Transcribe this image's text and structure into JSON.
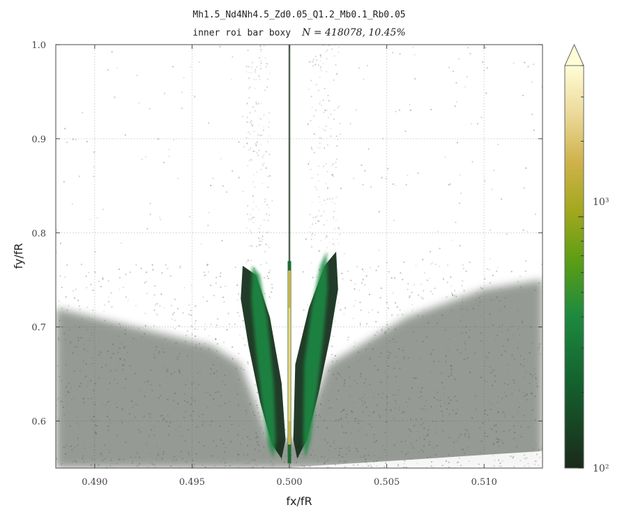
{
  "chart_data": {
    "type": "scatter",
    "title": "Mh1.5_Nd4Nh4.5_Zd0.05_Q1.2_Mb0.1_Rb0.05",
    "subtitle_prefix": "inner roi bar boxy",
    "subtitle_stats": "N = 418078,   10.45%",
    "xlabel": "fx/fR",
    "ylabel": "fy/fR",
    "xlim": [
      0.488,
      0.513
    ],
    "ylim": [
      0.55,
      1.0
    ],
    "xticks": [
      0.49,
      0.495,
      0.5,
      0.505,
      0.51
    ],
    "xtick_labels": [
      "0.490",
      "0.495",
      "0.500",
      "0.505",
      "0.510"
    ],
    "yticks": [
      0.6,
      0.7,
      0.8,
      0.9,
      1.0
    ],
    "ytick_labels": [
      "0.6",
      "0.7",
      "0.8",
      "0.9",
      "1.0"
    ],
    "grid": true,
    "colorbar": {
      "scale": "log",
      "range": [
        100,
        4000
      ],
      "tick_labels": [
        "10²",
        "10³"
      ],
      "tick_values": [
        100,
        1000
      ],
      "extend": "max",
      "colors": [
        "#1b2a1a",
        "#14632f",
        "#1d8a3f",
        "#5e9e14",
        "#a3a81e",
        "#cfb24a",
        "#ecd99a",
        "#fffdd6"
      ]
    },
    "features": [
      {
        "name": "vertical-ridge",
        "x": 0.5,
        "y_range": [
          0.55,
          1.0
        ]
      },
      {
        "name": "left-wing",
        "x_range": [
          0.4975,
          0.4995
        ],
        "y_range": [
          0.56,
          0.77
        ]
      },
      {
        "name": "right-wing",
        "x_range": [
          0.5005,
          0.5025
        ],
        "y_range": [
          0.56,
          0.78
        ]
      },
      {
        "name": "background-cloud",
        "y_range": [
          0.55,
          0.76
        ]
      }
    ],
    "colors": {
      "cloud": "#3f4a3c",
      "grid": "#cccccc",
      "frame": "#555555"
    }
  }
}
